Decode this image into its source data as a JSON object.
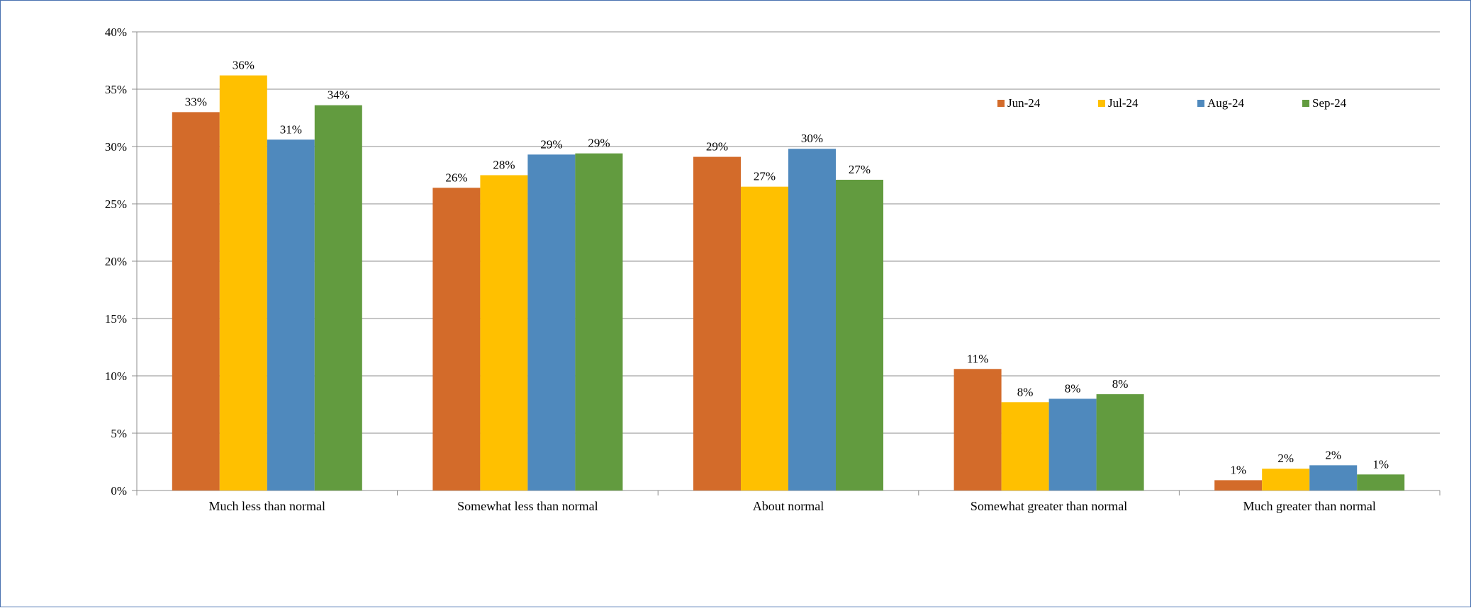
{
  "chart_data": {
    "type": "bar",
    "title": "",
    "xlabel": "",
    "ylabel": "",
    "categories": [
      "Much less than normal",
      "Somewhat less than normal",
      "About normal",
      "Somewhat greater than normal",
      "Much greater than normal"
    ],
    "series": [
      {
        "name": "Jun-24",
        "color": "#D36B2A",
        "values": [
          33.0,
          26.4,
          29.1,
          10.6,
          0.9
        ],
        "labels": [
          "33%",
          "26%",
          "29%",
          "11%",
          "1%"
        ]
      },
      {
        "name": "Jul-24",
        "color": "#FFC000",
        "values": [
          36.2,
          27.5,
          26.5,
          7.7,
          1.9
        ],
        "labels": [
          "36%",
          "28%",
          "27%",
          "8%",
          "2%"
        ]
      },
      {
        "name": "Aug-24",
        "color": "#4F89BD",
        "values": [
          30.6,
          29.3,
          29.8,
          8.0,
          2.2
        ],
        "labels": [
          "31%",
          "29%",
          "30%",
          "8%",
          "2%"
        ]
      },
      {
        "name": "Sep-24",
        "color": "#629B3F",
        "values": [
          33.6,
          29.4,
          27.1,
          8.4,
          1.4
        ],
        "labels": [
          "34%",
          "29%",
          "27%",
          "8%",
          "1%"
        ]
      }
    ],
    "ylim": [
      0,
      40
    ],
    "yticks": [
      0,
      5,
      10,
      15,
      20,
      25,
      30,
      35,
      40
    ],
    "ytick_labels": [
      "0%",
      "5%",
      "10%",
      "15%",
      "20%",
      "25%",
      "30%",
      "35%",
      "40%"
    ],
    "grid": true,
    "legend_position": "top-right"
  }
}
